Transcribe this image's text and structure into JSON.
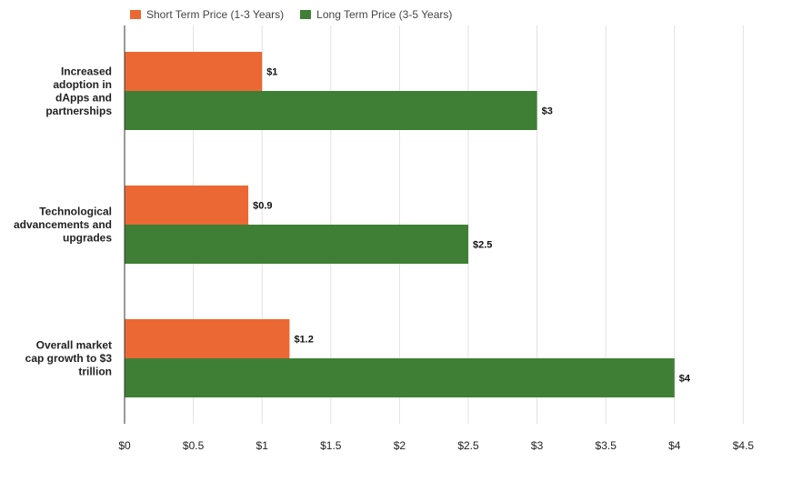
{
  "chart_data": {
    "type": "bar",
    "orientation": "horizontal",
    "categories": [
      [
        "Increased",
        "adoption in",
        "dApps and",
        "partnerships"
      ],
      [
        "Technological",
        "advancements and",
        "upgrades"
      ],
      [
        "Overall market",
        "cap growth to $3",
        "trillion"
      ]
    ],
    "series": [
      {
        "name": "Short Term Price (1-3 Years)",
        "color": "#eb6834",
        "values": [
          1,
          0.9,
          1.2
        ],
        "labels": [
          "$1",
          "$0.9",
          "$1.2"
        ]
      },
      {
        "name": "Long Term Price (3-5 Years)",
        "color": "#3f7f35",
        "values": [
          3,
          2.5,
          4
        ],
        "labels": [
          "$3",
          "$2.5",
          "$4"
        ]
      }
    ],
    "x_ticks": [
      0,
      0.5,
      1,
      1.5,
      2,
      2.5,
      3,
      3.5,
      4,
      4.5
    ],
    "x_tick_labels": [
      "$0",
      "$0.5",
      "$1",
      "$1.5",
      "$2",
      "$2.5",
      "$3",
      "$3.5",
      "$4",
      "$4.5"
    ],
    "xlim": [
      0,
      4.5
    ],
    "grid": true,
    "legend_position": "top-left"
  }
}
